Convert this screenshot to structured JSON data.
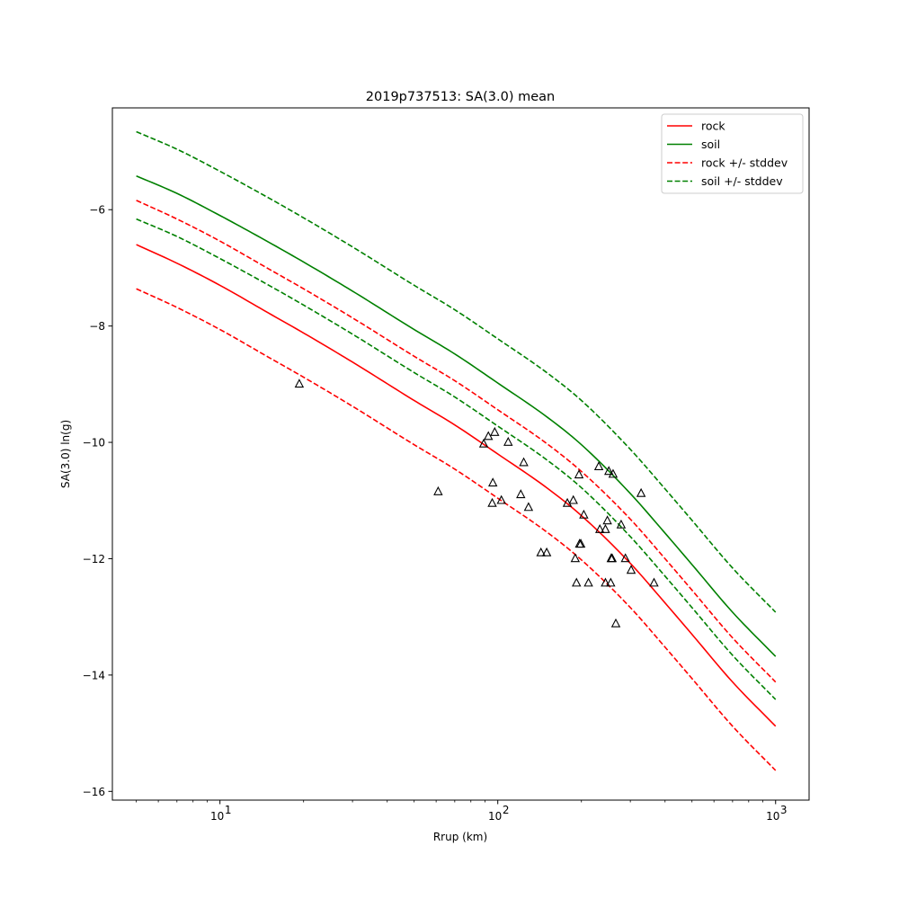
{
  "chart_data": {
    "type": "line",
    "title": "2019p737513: SA(3.0) mean",
    "xlabel": "Rrup (km)",
    "ylabel": "SA(3.0) ln(g)",
    "x_scale": "log",
    "xlim": [
      4.1,
      1320
    ],
    "ylim": [
      -16.15,
      -4.25
    ],
    "x_major_ticks": [
      {
        "value": 10,
        "label": "10",
        "exp": "1"
      },
      {
        "value": 100,
        "label": "10",
        "exp": "2"
      },
      {
        "value": 1000,
        "label": "10",
        "exp": "3"
      }
    ],
    "y_ticks": [
      {
        "value": -16,
        "label": "−16"
      },
      {
        "value": -14,
        "label": "−14"
      },
      {
        "value": -12,
        "label": "−12"
      },
      {
        "value": -10,
        "label": "−10"
      },
      {
        "value": -8,
        "label": "−8"
      },
      {
        "value": -6,
        "label": "−6"
      }
    ],
    "grid": false,
    "legend_position": "top-right",
    "x": [
      5,
      7,
      10,
      15,
      20,
      30,
      50,
      70,
      100,
      150,
      200,
      300,
      400,
      500,
      700,
      1000
    ],
    "series": [
      {
        "name": "rock",
        "color": "#ff0000",
        "dash": "solid",
        "values": [
          -6.6,
          -6.92,
          -7.3,
          -7.78,
          -8.12,
          -8.62,
          -9.28,
          -9.7,
          -10.2,
          -10.78,
          -11.26,
          -12.08,
          -12.76,
          -13.3,
          -14.12,
          -14.88
        ]
      },
      {
        "name": "soil",
        "color": "#008000",
        "dash": "solid",
        "values": [
          -5.42,
          -5.72,
          -6.1,
          -6.56,
          -6.9,
          -7.4,
          -8.06,
          -8.48,
          -8.98,
          -9.56,
          -10.04,
          -10.88,
          -11.56,
          -12.1,
          -12.92,
          -13.68
        ]
      },
      {
        "name": "rock +/- stddev",
        "color": "#ff0000",
        "dash": "dashed",
        "values": [
          -5.84,
          -6.16,
          -6.54,
          -7.02,
          -7.36,
          -7.86,
          -8.52,
          -8.94,
          -9.44,
          -10.02,
          -10.5,
          -11.32,
          -12.0,
          -12.54,
          -13.36,
          -14.12
        ]
      },
      {
        "name": "rock +/- stddev (lower)",
        "color": "#ff0000",
        "dash": "dashed",
        "values": [
          -7.36,
          -7.68,
          -8.06,
          -8.54,
          -8.88,
          -9.38,
          -10.04,
          -10.46,
          -10.96,
          -11.54,
          -12.02,
          -12.84,
          -13.52,
          -14.06,
          -14.88,
          -15.64
        ]
      },
      {
        "name": "soil +/- stddev",
        "color": "#008000",
        "dash": "dashed",
        "values": [
          -4.66,
          -4.96,
          -5.34,
          -5.8,
          -6.14,
          -6.64,
          -7.3,
          -7.72,
          -8.22,
          -8.8,
          -9.28,
          -10.12,
          -10.8,
          -11.34,
          -12.16,
          -12.92
        ]
      },
      {
        "name": "soil +/- stddev (lower)",
        "color": "#008000",
        "dash": "dashed",
        "values": [
          -6.16,
          -6.46,
          -6.84,
          -7.3,
          -7.64,
          -8.14,
          -8.8,
          -9.22,
          -9.72,
          -10.3,
          -10.78,
          -11.62,
          -12.3,
          -12.84,
          -13.66,
          -14.42
        ]
      }
    ],
    "legend": [
      {
        "label": "rock",
        "color": "#ff0000",
        "dash": "solid"
      },
      {
        "label": "soil",
        "color": "#008000",
        "dash": "solid"
      },
      {
        "label": "rock +/- stddev",
        "color": "#ff0000",
        "dash": "dashed"
      },
      {
        "label": "soil +/- stddev",
        "color": "#008000",
        "dash": "dashed"
      }
    ],
    "observations": {
      "marker": "triangle",
      "color": "#000000",
      "points": [
        [
          19.3,
          -9.0
        ],
        [
          61,
          -10.85
        ],
        [
          89,
          -10.03
        ],
        [
          92.5,
          -9.9
        ],
        [
          95.5,
          -11.05
        ],
        [
          96,
          -10.7
        ],
        [
          97.5,
          -9.83
        ],
        [
          103,
          -11.0
        ],
        [
          109,
          -10.0
        ],
        [
          121,
          -10.9
        ],
        [
          124,
          -10.35
        ],
        [
          129,
          -11.12
        ],
        [
          143,
          -11.9
        ],
        [
          150,
          -11.9
        ],
        [
          178,
          -11.05
        ],
        [
          187,
          -11.0
        ],
        [
          190,
          -12.0
        ],
        [
          192,
          -12.42
        ],
        [
          196,
          -10.56
        ],
        [
          197,
          -11.75
        ],
        [
          199,
          -11.75
        ],
        [
          204,
          -11.25
        ],
        [
          212,
          -12.42
        ],
        [
          231,
          -10.42
        ],
        [
          233,
          -11.5
        ],
        [
          244,
          -11.5
        ],
        [
          244,
          -12.42
        ],
        [
          248,
          -11.35
        ],
        [
          251,
          -10.5
        ],
        [
          255,
          -12.42
        ],
        [
          256,
          -12.0
        ],
        [
          258,
          -12.0
        ],
        [
          260,
          -10.55
        ],
        [
          266,
          -13.12
        ],
        [
          278,
          -11.42
        ],
        [
          288,
          -12.0
        ],
        [
          302,
          -12.2
        ],
        [
          328,
          -10.88
        ],
        [
          365,
          -12.42
        ]
      ]
    }
  }
}
